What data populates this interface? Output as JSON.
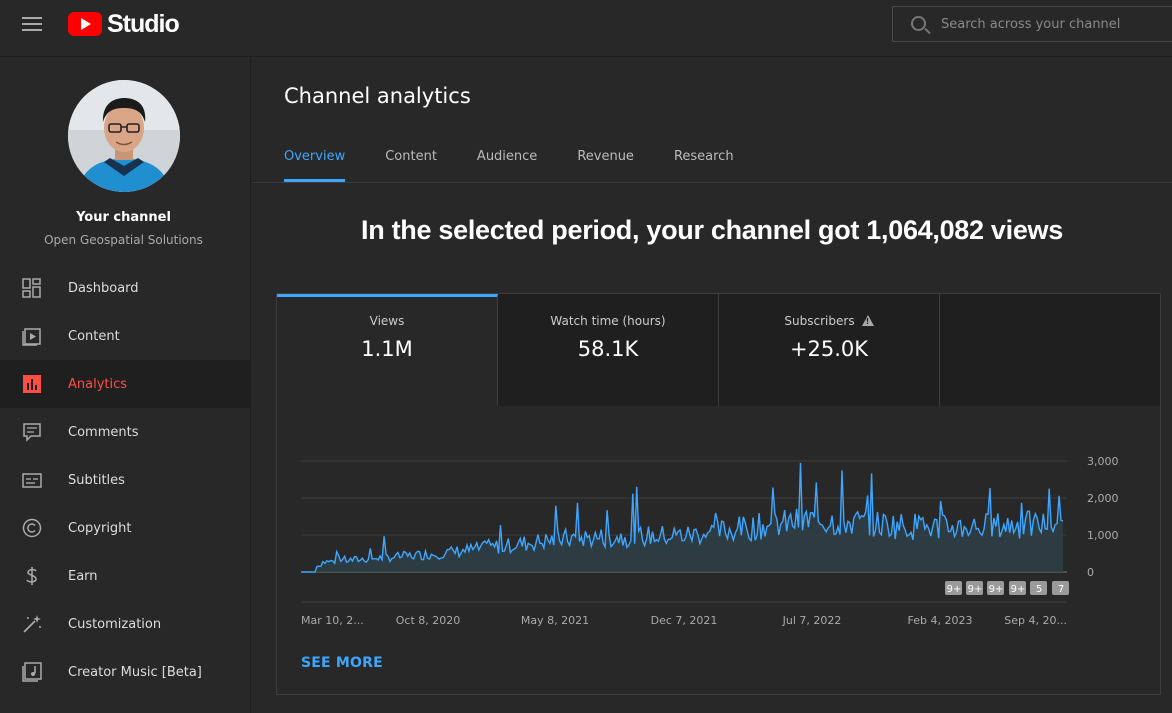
{
  "app": {
    "logo_text": "Studio"
  },
  "search": {
    "placeholder": "Search across your channel"
  },
  "sidebar": {
    "channel_title": "Your channel",
    "channel_name": "Open Geospatial Solutions",
    "items": [
      {
        "label": "Dashboard",
        "icon": "dashboard-icon"
      },
      {
        "label": "Content",
        "icon": "content-icon"
      },
      {
        "label": "Analytics",
        "icon": "analytics-icon",
        "active": true
      },
      {
        "label": "Comments",
        "icon": "comments-icon"
      },
      {
        "label": "Subtitles",
        "icon": "subtitles-icon"
      },
      {
        "label": "Copyright",
        "icon": "copyright-icon"
      },
      {
        "label": "Earn",
        "icon": "earn-icon"
      },
      {
        "label": "Customization",
        "icon": "customization-icon"
      },
      {
        "label": "Creator Music [Beta]",
        "icon": "creator-music-icon"
      }
    ]
  },
  "main": {
    "title": "Channel analytics",
    "tabs": [
      {
        "label": "Overview",
        "active": true
      },
      {
        "label": "Content"
      },
      {
        "label": "Audience"
      },
      {
        "label": "Revenue"
      },
      {
        "label": "Research"
      }
    ],
    "headline": "In the selected period, your channel got 1,064,082 views",
    "metrics": [
      {
        "label": "Views",
        "value": "1.1M"
      },
      {
        "label": "Watch time (hours)",
        "value": "58.1K"
      },
      {
        "label": "Subscribers",
        "value": "+25.0K",
        "warning": true
      }
    ],
    "see_more": "SEE MORE"
  },
  "colors": {
    "accent": "#3ea6ff",
    "active_nav": "#ff4e45",
    "line": "#3ea6ff",
    "area": "#2c3e45"
  },
  "chart_data": {
    "type": "area",
    "x_tick_labels": [
      "Mar 10, 2...",
      "Oct 8, 2020",
      "May 8, 2021",
      "Dec 7, 2021",
      "Jul 7, 2022",
      "Feb 4, 2023",
      "Sep 4, 20..."
    ],
    "y_tick_labels": [
      "3,000",
      "2,000",
      "1,000",
      "0"
    ],
    "ylim": [
      0,
      3000
    ],
    "grid": true,
    "markers": [
      "9+",
      "9+",
      "9+",
      "9+",
      "5",
      "7"
    ],
    "trend": [
      {
        "x": "Mar 10, 2020",
        "y": 250
      },
      {
        "x": "Oct 8, 2020",
        "y": 500
      },
      {
        "x": "May 8, 2021",
        "y": 900
      },
      {
        "x": "Dec 7, 2021",
        "y": 1000
      },
      {
        "x": "Jul 7, 2022",
        "y": 1400
      },
      {
        "x": "Feb 4, 2023",
        "y": 1200
      },
      {
        "x": "Sep 4, 2023",
        "y": 1300
      }
    ]
  }
}
